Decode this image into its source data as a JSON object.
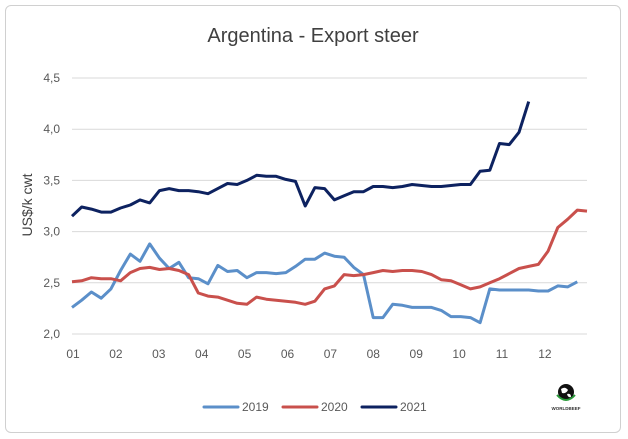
{
  "chart_data": {
    "type": "line",
    "title": "Argentina - Export steer",
    "xlabel": "",
    "ylabel": "US$/k cwt",
    "ylim": [
      2.0,
      4.5
    ],
    "yticks": [
      "2,0",
      "2,5",
      "3,0",
      "3,5",
      "4,0",
      "4,5"
    ],
    "xticks": [
      "01",
      "02",
      "03",
      "04",
      "05",
      "06",
      "07",
      "08",
      "09",
      "10",
      "11",
      "12"
    ],
    "x_unit": "week",
    "grid": true,
    "legend": "bottom",
    "series": [
      {
        "name": "2019",
        "color": "#5b8fc9",
        "values": [
          2.26,
          2.33,
          2.41,
          2.35,
          2.44,
          2.62,
          2.78,
          2.71,
          2.88,
          2.74,
          2.64,
          2.7,
          2.55,
          2.54,
          2.49,
          2.67,
          2.61,
          2.62,
          2.55,
          2.6,
          2.6,
          2.59,
          2.6,
          2.66,
          2.73,
          2.73,
          2.79,
          2.76,
          2.75,
          2.65,
          2.58,
          2.16,
          2.16,
          2.29,
          2.28,
          2.26,
          2.26,
          2.26,
          2.23,
          2.17,
          2.17,
          2.16,
          2.11,
          2.44,
          2.43,
          2.43,
          2.43,
          2.43,
          2.42,
          2.42,
          2.47,
          2.46,
          2.51
        ]
      },
      {
        "name": "2020",
        "color": "#c9504c",
        "values": [
          2.51,
          2.52,
          2.55,
          2.54,
          2.54,
          2.52,
          2.6,
          2.64,
          2.65,
          2.63,
          2.64,
          2.62,
          2.58,
          2.4,
          2.37,
          2.36,
          2.33,
          2.3,
          2.29,
          2.36,
          2.34,
          2.33,
          2.32,
          2.31,
          2.29,
          2.32,
          2.44,
          2.47,
          2.58,
          2.57,
          2.58,
          2.6,
          2.62,
          2.61,
          2.62,
          2.62,
          2.61,
          2.58,
          2.53,
          2.52,
          2.48,
          2.44,
          2.46,
          2.5,
          2.54,
          2.59,
          2.64,
          2.66,
          2.68,
          2.81,
          3.04,
          3.12,
          3.21,
          3.2
        ]
      },
      {
        "name": "2021",
        "color": "#0d2260",
        "values": [
          3.15,
          3.24,
          3.22,
          3.19,
          3.19,
          3.23,
          3.26,
          3.31,
          3.28,
          3.4,
          3.42,
          3.4,
          3.4,
          3.39,
          3.37,
          3.42,
          3.47,
          3.46,
          3.5,
          3.55,
          3.54,
          3.54,
          3.51,
          3.49,
          3.25,
          3.43,
          3.42,
          3.31,
          3.35,
          3.39,
          3.39,
          3.44,
          3.44,
          3.43,
          3.44,
          3.46,
          3.45,
          3.44,
          3.44,
          3.45,
          3.46,
          3.46,
          3.59,
          3.6,
          3.86,
          3.85,
          3.97,
          4.27
        ]
      }
    ]
  },
  "logo": {
    "text": "WORLDBEEF"
  }
}
